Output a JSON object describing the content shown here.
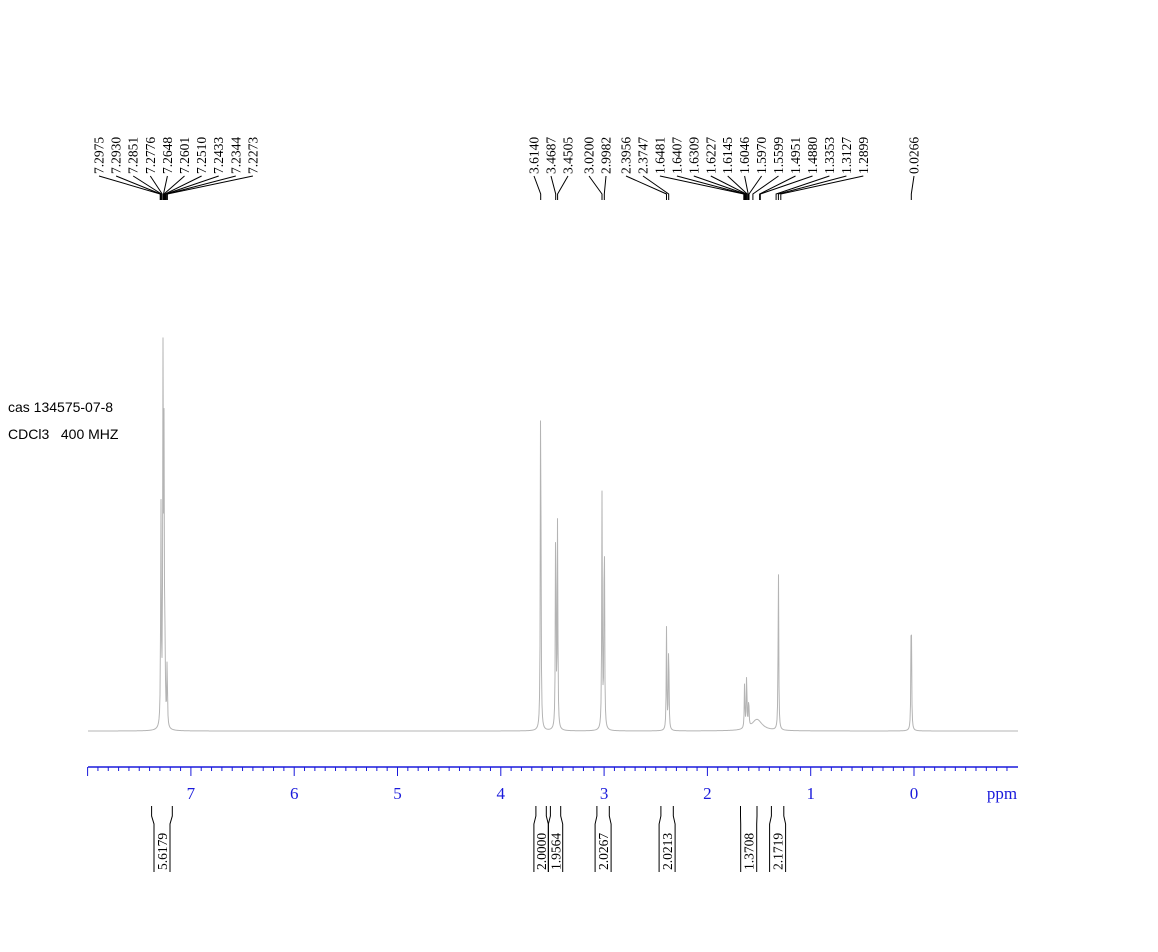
{
  "sample": {
    "cas": "cas 134575-07-8",
    "conditions": "CDCl3   400 MHZ"
  },
  "colors": {
    "axis": "#1a1adb",
    "spectrum": "#b4b4b4",
    "labels": "#000000"
  },
  "chart_data": {
    "type": "line",
    "title": "",
    "xlabel": "ppm",
    "ylabel": "",
    "xlim": [
      8.0,
      -1.0
    ],
    "x_reversed": true,
    "grid": false,
    "ticks": [
      "0",
      "1",
      "2",
      "3",
      "4",
      "5",
      "6",
      "7"
    ],
    "peak_labels": [
      "7.2975",
      "7.2930",
      "7.2851",
      "7.2776",
      "7.2648",
      "7.2601",
      "7.2510",
      "7.2433",
      "7.2344",
      "7.2273",
      "3.6140",
      "3.4687",
      "3.4505",
      "3.0200",
      "2.9982",
      "2.3956",
      "2.3747",
      "1.6481",
      "1.6407",
      "1.6309",
      "1.6227",
      "1.6145",
      "1.6046",
      "1.5970",
      "1.5599",
      "1.4951",
      "1.4880",
      "1.3353",
      "1.3127",
      "1.2899",
      "0.0266"
    ],
    "peaks": [
      {
        "ppm": 7.29,
        "height": 0.58
      },
      {
        "ppm": 7.27,
        "height": 0.93
      },
      {
        "ppm": 7.26,
        "height": 0.72
      },
      {
        "ppm": 7.23,
        "height": 0.18
      },
      {
        "ppm": 7.25,
        "height": 0.15
      },
      {
        "ppm": 3.614,
        "height": 1.0
      },
      {
        "ppm": 3.4687,
        "height": 0.6
      },
      {
        "ppm": 3.4505,
        "height": 0.55
      },
      {
        "ppm": 3.02,
        "height": 0.62
      },
      {
        "ppm": 2.9982,
        "height": 0.6
      },
      {
        "ppm": 2.3956,
        "height": 0.27
      },
      {
        "ppm": 2.3747,
        "height": 0.25
      },
      {
        "ppm": 1.64,
        "height": 0.12
      },
      {
        "ppm": 1.62,
        "height": 0.15
      },
      {
        "ppm": 1.6,
        "height": 0.08
      },
      {
        "ppm": 1.3127,
        "height": 0.44
      },
      {
        "ppm": 0.0266,
        "height": 0.37
      }
    ],
    "integrals": [
      {
        "range": [
          7.38,
          7.18
        ],
        "value": "5.6179"
      },
      {
        "range": [
          3.66,
          3.56
        ],
        "value": "2.0000"
      },
      {
        "range": [
          3.52,
          3.42
        ],
        "value": "1.9564"
      },
      {
        "range": [
          3.07,
          2.95
        ],
        "value": "2.0267"
      },
      {
        "range": [
          2.45,
          2.33
        ],
        "value": "2.0213"
      },
      {
        "range": [
          1.68,
          1.52
        ],
        "value": "1.3708"
      },
      {
        "range": [
          1.38,
          1.26
        ],
        "value": "2.1719"
      }
    ]
  }
}
